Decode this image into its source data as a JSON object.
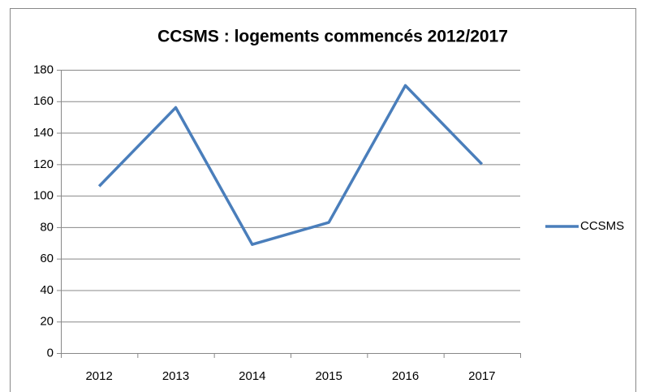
{
  "chart_data": {
    "type": "line",
    "title": "CCSMS : logements commencés 2012/2017",
    "categories": [
      "2012",
      "2013",
      "2014",
      "2015",
      "2016",
      "2017"
    ],
    "series": [
      {
        "name": "CCSMS",
        "color": "#4a7ebb",
        "values": [
          106,
          156,
          69,
          83,
          170,
          120
        ]
      }
    ],
    "ylim": [
      0,
      180
    ],
    "yticks": [
      0,
      20,
      40,
      60,
      80,
      100,
      120,
      140,
      160,
      180
    ],
    "grid": true,
    "legend": "right"
  }
}
